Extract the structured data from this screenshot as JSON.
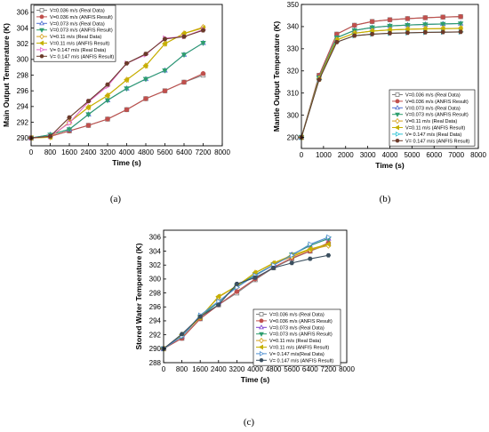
{
  "chart_data": [
    {
      "type": "line",
      "panel_label": "(a)",
      "xlabel": "Time (s)",
      "ylabel": "Main Output Temperature (K)",
      "xlim": [
        0,
        8000
      ],
      "ylim": [
        289,
        307
      ],
      "xticks": [
        0,
        800,
        1600,
        2400,
        3200,
        4000,
        4800,
        5600,
        6400,
        7200,
        8000
      ],
      "yticks": [
        290,
        292,
        294,
        296,
        298,
        300,
        302,
        304,
        306
      ],
      "x": [
        0,
        800,
        1600,
        2400,
        3200,
        4000,
        4800,
        5600,
        6400,
        7200
      ],
      "legend_position": "top-left",
      "series": [
        {
          "name": "V=0.036 m/s (Real Data)",
          "color": "#7f7f7f",
          "marker": "square",
          "hollow": true,
          "values": [
            290.0,
            290.2,
            290.9,
            291.6,
            292.4,
            293.6,
            295.0,
            296.0,
            297.1,
            298.0
          ]
        },
        {
          "name": "V=0.036 m/s (ANFIS Result)",
          "color": "#c0504d",
          "marker": "circle",
          "hollow": false,
          "values": [
            290.0,
            290.2,
            290.9,
            291.6,
            292.4,
            293.6,
            295.0,
            296.0,
            297.1,
            298.2
          ]
        },
        {
          "name": "V=0.073 m/s (Real Data)",
          "color": "#4f6fd0",
          "marker": "triangle",
          "hollow": true,
          "values": [
            290.0,
            290.4,
            291.1,
            293.0,
            294.8,
            296.3,
            297.5,
            298.6,
            300.6,
            302.1
          ]
        },
        {
          "name": "V=0.073 m/s (ANFIS Result)",
          "color": "#2e9e6e",
          "marker": "triangle-down",
          "hollow": false,
          "values": [
            290.0,
            290.4,
            291.1,
            293.0,
            294.8,
            296.3,
            297.5,
            298.6,
            300.6,
            302.1
          ]
        },
        {
          "name": "V=0.11 m/s (Real Data)",
          "color": "#d4a017",
          "marker": "diamond",
          "hollow": true,
          "values": [
            290.0,
            290.1,
            292.0,
            293.9,
            295.4,
            297.4,
            299.2,
            302.0,
            303.3,
            304.1
          ]
        },
        {
          "name": "V=0.11 m/s (ANFIS Result)",
          "color": "#c5b000",
          "marker": "triangle-left",
          "hollow": false,
          "values": [
            290.0,
            290.1,
            292.0,
            293.9,
            295.4,
            297.4,
            299.2,
            302.0,
            303.3,
            304.0
          ]
        },
        {
          "name": "V= 0.147 m/s (Real Data)",
          "color": "#e066c8",
          "marker": "triangle-right",
          "hollow": true,
          "values": [
            290.0,
            290.2,
            291.9,
            294.6,
            296.6,
            299.5,
            300.6,
            302.7,
            302.9,
            303.8
          ]
        },
        {
          "name": "V= 0.147 m/s (ANFIS Result)",
          "color": "#6b3a2a",
          "marker": "hexagon",
          "hollow": false,
          "values": [
            290.0,
            290.2,
            292.6,
            294.7,
            296.8,
            299.5,
            300.7,
            302.6,
            302.9,
            303.7
          ]
        }
      ]
    },
    {
      "type": "line",
      "panel_label": "(b)",
      "xlabel": "Time (s)",
      "ylabel": "Mantle Output Temperature (K)",
      "xlim": [
        0,
        8000
      ],
      "ylim": [
        285,
        350
      ],
      "xticks": [
        0,
        1000,
        2000,
        3000,
        4000,
        5000,
        6000,
        7000,
        8000
      ],
      "yticks": [
        290,
        300,
        310,
        320,
        330,
        340,
        350
      ],
      "x": [
        0,
        800,
        1600,
        2400,
        3200,
        4000,
        4800,
        5600,
        6400,
        7200
      ],
      "legend_position": "bottom-right",
      "series": [
        {
          "name": "V=0.036 m/s (Real Data)",
          "color": "#7f7f7f",
          "marker": "square",
          "hollow": true,
          "values": [
            290.0,
            318.0,
            336.6,
            340.6,
            342.3,
            343.1,
            343.6,
            344.0,
            344.3,
            344.5
          ]
        },
        {
          "name": "V=0.036 m/s (ANFIS Result)",
          "color": "#c0504d",
          "marker": "circle",
          "hollow": false,
          "values": [
            290.0,
            318.0,
            336.6,
            340.6,
            342.3,
            343.1,
            343.6,
            344.0,
            344.3,
            344.5
          ]
        },
        {
          "name": "V=0.073 m/s (Real Data)",
          "color": "#4f6fd0",
          "marker": "triangle",
          "hollow": true,
          "values": [
            290.0,
            317.0,
            335.0,
            338.3,
            339.6,
            340.3,
            340.7,
            341.0,
            341.2,
            341.4
          ]
        },
        {
          "name": "V=0.073 m/s (ANFIS Result)",
          "color": "#2e9e6e",
          "marker": "triangle-down",
          "hollow": false,
          "values": [
            290.0,
            317.0,
            335.0,
            338.3,
            339.6,
            340.3,
            340.7,
            341.0,
            341.2,
            341.4
          ]
        },
        {
          "name": "V=0.11 m/s (Real Data)",
          "color": "#d4a017",
          "marker": "diamond",
          "hollow": true,
          "values": [
            290.0,
            316.5,
            334.0,
            337.0,
            338.0,
            338.5,
            338.8,
            339.0,
            339.1,
            339.2
          ]
        },
        {
          "name": "V=0.11 m/s (ANFIS Result)",
          "color": "#c5b000",
          "marker": "triangle-left",
          "hollow": false,
          "values": [
            290.0,
            316.5,
            334.0,
            337.0,
            338.0,
            338.5,
            338.8,
            339.0,
            339.1,
            339.2
          ]
        },
        {
          "name": "V= 0.147 m/s (Real Data)",
          "color": "#2ec4d6",
          "marker": "triangle-right",
          "hollow": true,
          "values": [
            290.0,
            316.0,
            333.0,
            335.9,
            336.6,
            337.0,
            337.2,
            337.4,
            337.5,
            337.6
          ]
        },
        {
          "name": "V= 0.147 m/s (ANFIS Result)",
          "color": "#6b3a2a",
          "marker": "hexagon",
          "hollow": false,
          "values": [
            290.0,
            316.0,
            333.0,
            335.9,
            336.6,
            337.0,
            337.2,
            337.4,
            337.5,
            337.6
          ]
        }
      ]
    },
    {
      "type": "line",
      "panel_label": "(c)",
      "xlabel": "Time (s)",
      "ylabel": "Stored Water Temperature (K)",
      "xlim": [
        0,
        8000
      ],
      "ylim": [
        288,
        307
      ],
      "xticks": [
        0,
        800,
        1600,
        2400,
        3200,
        4000,
        4800,
        5600,
        6400,
        7200,
        8000
      ],
      "yticks": [
        288,
        290,
        292,
        294,
        296,
        298,
        300,
        302,
        304,
        306
      ],
      "x": [
        0,
        800,
        1600,
        2400,
        3200,
        4000,
        4800,
        5600,
        6400,
        7200
      ],
      "legend_position": "bottom-right",
      "series": [
        {
          "name": "V=0.036 m/s (Real Data)",
          "color": "#7f7f7f",
          "marker": "square",
          "hollow": true,
          "values": [
            290.0,
            291.5,
            294.3,
            296.3,
            298.0,
            299.9,
            301.6,
            302.9,
            304.0,
            305.0
          ]
        },
        {
          "name": "V=0.036 m/s (ANFIS Result)",
          "color": "#c0504d",
          "marker": "circle",
          "hollow": false,
          "values": [
            290.0,
            291.5,
            294.3,
            296.3,
            298.2,
            300.0,
            301.7,
            303.0,
            304.0,
            305.2
          ]
        },
        {
          "name": "V=0.073 m/s (Real Data)",
          "color": "#7b3fd0",
          "marker": "triangle",
          "hollow": true,
          "values": [
            290.0,
            291.8,
            294.6,
            296.7,
            299.0,
            300.6,
            302.0,
            303.5,
            304.8,
            305.8
          ]
        },
        {
          "name": "V=0.073 m/s (ANFIS Result)",
          "color": "#2e9e6e",
          "marker": "triangle-down",
          "hollow": false,
          "values": [
            290.0,
            291.8,
            294.6,
            296.7,
            299.0,
            300.6,
            302.0,
            303.5,
            304.8,
            305.8
          ]
        },
        {
          "name": "V=0.11 m/s (Real Data)",
          "color": "#d4a017",
          "marker": "diamond",
          "hollow": true,
          "values": [
            290.0,
            292.0,
            294.5,
            297.4,
            299.0,
            300.9,
            302.2,
            303.2,
            304.2,
            304.8
          ]
        },
        {
          "name": "V=0.11 m/s (ANFIS Result)",
          "color": "#c5b000",
          "marker": "triangle-left",
          "hollow": false,
          "values": [
            290.0,
            292.0,
            294.5,
            297.5,
            299.0,
            300.9,
            302.3,
            303.4,
            304.3,
            305.0
          ]
        },
        {
          "name": "V= 0.147 m/s(Real Data)",
          "color": "#4f8fd0",
          "marker": "triangle-right",
          "hollow": true,
          "values": [
            290.0,
            291.8,
            294.8,
            296.8,
            298.8,
            300.5,
            302.0,
            303.4,
            305.0,
            306.0
          ]
        },
        {
          "name": "V= 0.147 m/s (ANFIS Result)",
          "color": "#3b4f5f",
          "marker": "hexagon",
          "hollow": false,
          "values": [
            290.0,
            292.1,
            294.6,
            296.3,
            299.3,
            300.2,
            301.6,
            302.3,
            302.9,
            303.4
          ]
        }
      ]
    }
  ]
}
